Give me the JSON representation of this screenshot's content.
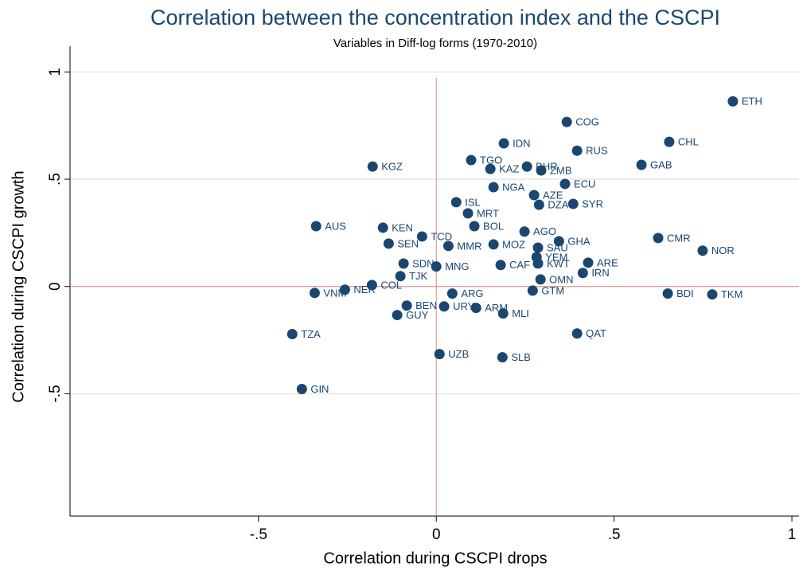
{
  "chart_data": {
    "type": "scatter",
    "title": "Correlation between the concentration index and the CSCPI",
    "subtitle": "Variables in Diff-log forms (1970-2010)",
    "x_label": "Correlation during CSCPI drops",
    "y_label": "Correlation during CSCPI growth",
    "color": "#1a476f",
    "reference_line_color": "#d98b7f",
    "grid": true,
    "xlim": [
      -1.03,
      1.02
    ],
    "ylim": [
      -1.07,
      1.12
    ],
    "xticks": [
      {
        "value": -0.5,
        "label": "-.5"
      },
      0,
      {
        "value": 0.5,
        "label": ".5"
      },
      1
    ],
    "yticks": [
      {
        "value": -0.5,
        "label": "-.5"
      },
      0,
      {
        "value": 0.5,
        "label": ".5"
      },
      1
    ],
    "labels": [
      "ETH",
      "COG",
      "CHL",
      "IDN",
      "RUS",
      "TGO",
      "KGZ",
      "GAB",
      "KAZ",
      "BHR",
      "ZMB",
      "ECU",
      "NGA",
      "AZE",
      "ISL",
      "SYR",
      "DZA",
      "MRT",
      "AUS",
      "KEN",
      "BOL",
      "TCD",
      "SEN",
      "CMR",
      "NOR",
      "GHA",
      "SAU",
      "MOZ",
      "SDN",
      "MNG",
      "TJK",
      "COL",
      "NER",
      "VNM",
      "ARG",
      "GTM",
      "BDI",
      "TKM",
      "URY",
      "ARM",
      "MLI",
      "BEN",
      "GUY",
      "TZA",
      "QAT",
      "UZB",
      "SLB",
      "GIN",
      "IRN",
      "ARE",
      "OMN",
      "KWT",
      "YEM",
      "AGO",
      "MMR",
      "CAF"
    ],
    "x": [
      0.834,
      0.367,
      0.655,
      0.19,
      0.396,
      0.098,
      -0.179,
      0.577,
      0.152,
      0.255,
      0.295,
      0.362,
      0.161,
      0.275,
      0.056,
      0.385,
      0.289,
      0.089,
      -0.338,
      -0.15,
      0.107,
      -0.04,
      -0.134,
      0.624,
      0.749,
      0.345,
      0.286,
      0.161,
      -0.092,
      0.0,
      -0.101,
      -0.181,
      -0.257,
      -0.342,
      0.045,
      0.271,
      0.651,
      0.776,
      0.022,
      0.112,
      0.188,
      -0.083,
      -0.11,
      -0.405,
      0.396,
      0.009,
      0.186,
      -0.378,
      0.412,
      0.427,
      0.293,
      0.286,
      0.282,
      0.248,
      0.034,
      0.181
    ],
    "y": [
      0.863,
      0.767,
      0.674,
      0.667,
      0.633,
      0.589,
      0.559,
      0.567,
      0.548,
      0.559,
      0.541,
      0.478,
      0.463,
      0.426,
      0.393,
      0.385,
      0.381,
      0.341,
      0.281,
      0.274,
      0.281,
      0.233,
      0.2,
      0.226,
      0.167,
      0.211,
      0.181,
      0.196,
      0.107,
      0.093,
      0.048,
      0.007,
      -0.015,
      -0.03,
      -0.033,
      -0.019,
      -0.033,
      -0.037,
      -0.093,
      -0.1,
      -0.126,
      -0.089,
      -0.133,
      -0.222,
      -0.219,
      -0.315,
      -0.33,
      -0.478,
      0.063,
      0.111,
      0.033,
      0.107,
      0.137,
      0.256,
      0.189,
      0.1
    ]
  }
}
